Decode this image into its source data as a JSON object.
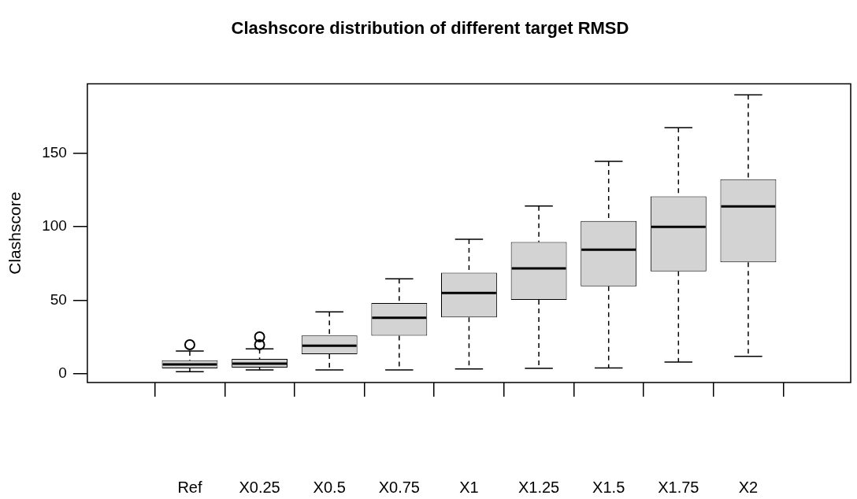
{
  "chart_data": {
    "type": "box",
    "title": "Clashscore distribution of different target RMSD",
    "ylabel": "Clashscore",
    "categories": [
      "Ref",
      "X0.25",
      "X0.5",
      "X0.75",
      "X1",
      "X1.25",
      "X1.5",
      "X1.75",
      "X2"
    ],
    "boxes": [
      {
        "low": 1.4,
        "q1": 3.6,
        "median": 6.3,
        "q3": 9.1,
        "high": 15.4,
        "outliers": [
          19.7
        ]
      },
      {
        "low": 2.5,
        "q1": 4.1,
        "median": 6.8,
        "q3": 10,
        "high": 16.8,
        "outliers": [
          19.7,
          25
        ]
      },
      {
        "low": 2.5,
        "q1": 13.3,
        "median": 19,
        "q3": 26,
        "high": 42
      },
      {
        "low": 2.5,
        "q1": 25.8,
        "median": 38,
        "q3": 48,
        "high": 64.5
      },
      {
        "low": 3.2,
        "q1": 38.3,
        "median": 54.8,
        "q3": 68.6,
        "high": 91.3
      },
      {
        "low": 3.6,
        "q1": 50.1,
        "median": 71.6,
        "q3": 89.5,
        "high": 113.9
      },
      {
        "low": 3.9,
        "q1": 59.4,
        "median": 84.3,
        "q3": 103.8,
        "high": 144.3
      },
      {
        "low": 7.9,
        "q1": 69.5,
        "median": 99.7,
        "q3": 120.5,
        "high": 167.2
      },
      {
        "low": 11.8,
        "q1": 75.7,
        "median": 113.7,
        "q3": 132.1,
        "high": 189.4
      }
    ],
    "ylim": [
      -6,
      197
    ],
    "yticks": [
      0,
      50,
      100,
      150
    ],
    "grid": false,
    "legend": false
  }
}
